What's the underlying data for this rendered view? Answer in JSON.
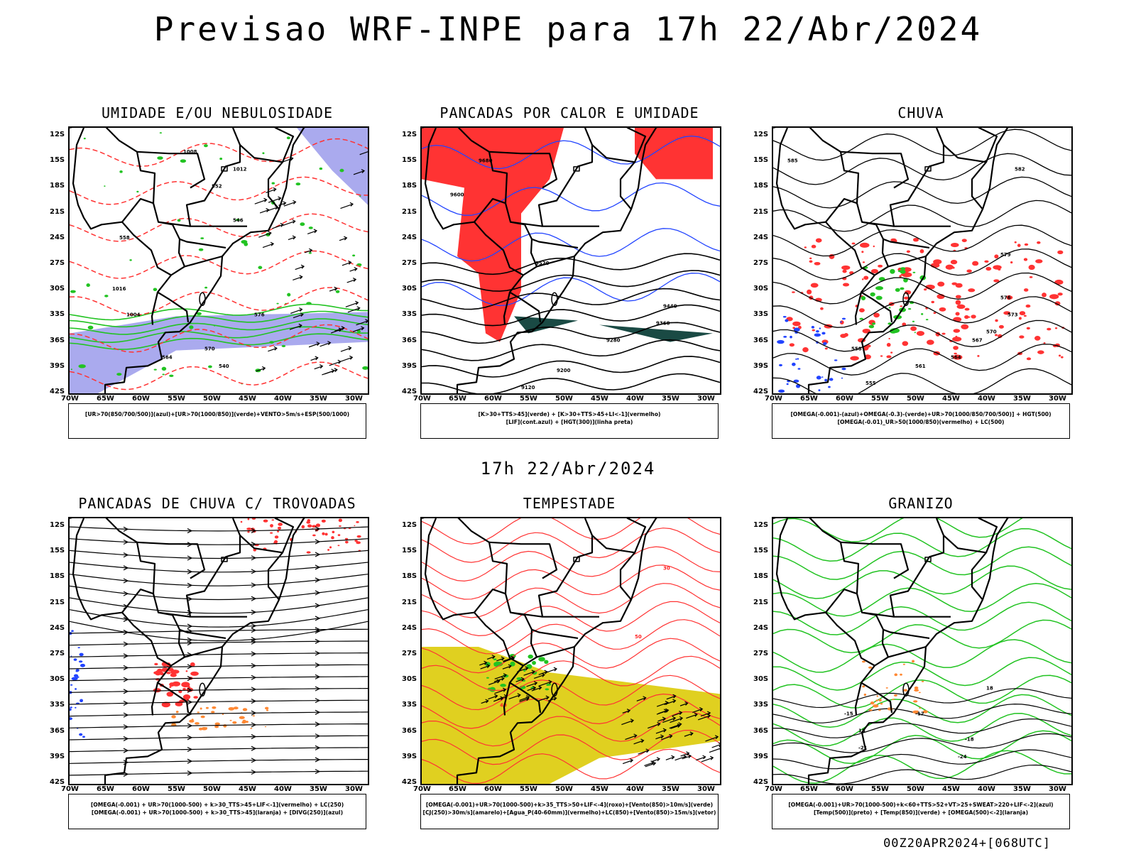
{
  "title": "Previsao WRF-INPE  para 17h 22/Abr/2024",
  "mid_date": "17h 22/Abr/2024",
  "footer": "00Z20APR2024+[068UTC]",
  "lat_labels": [
    "12S",
    "15S",
    "18S",
    "21S",
    "24S",
    "27S",
    "30S",
    "33S",
    "36S",
    "39S",
    "42S"
  ],
  "lon_labels": [
    "70W",
    "65W",
    "60W",
    "55W",
    "50W",
    "45W",
    "40W",
    "35W",
    "30W"
  ],
  "colors": {
    "green": "#22c322",
    "red": "#ff3333",
    "blue": "#2244ff",
    "lavender": "#aaaaee",
    "orange": "#ff8833",
    "dark_teal": "#1a4a44",
    "yellow": "#e0d020"
  },
  "panels": [
    {
      "id": "umidade",
      "title": "UMIDADE E/OU NEBULOSIDADE",
      "legend": [
        "[UR>70(850/700/500)](azul)+[UR>70(1000/850)](verde)+VENTO>5m/s+ESP(500/1000)"
      ],
      "contour_labels": [
        "1008",
        "1012",
        "1016",
        "1004",
        "576",
        "570",
        "564",
        "558",
        "552",
        "546",
        "540"
      ]
    },
    {
      "id": "pancadas-calor",
      "title": "PANCADAS POR CALOR E UMIDADE",
      "legend": [
        "[K>30+TTS>45](verde) + [K>30+TTS>45+LI<-1](vermelho)",
        "[LIF](cont.azul) + [HGT(300)](linha preta)"
      ],
      "contour_labels": [
        "9680",
        "9600",
        "9520",
        "9440",
        "9360",
        "9280",
        "9200",
        "9120"
      ]
    },
    {
      "id": "chuva",
      "title": "CHUVA",
      "legend": [
        "[OMEGA(-0.001)-(azul)+OMEGA(-0.3)-(verde)+UR>70(1000/850/700/500)] + HGT(500)",
        "[OMEGA(-0.01)_UR>50(1000/850)(vermelho) + LC(500)"
      ],
      "contour_labels": [
        "585",
        "582",
        "579",
        "576",
        "573",
        "570",
        "567",
        "564",
        "561",
        "558",
        "555"
      ]
    },
    {
      "id": "pancadas-trovoadas",
      "title": "PANCADAS DE CHUVA C/ TROVOADAS",
      "legend": [
        "[OMEGA(-0.001) + UR>70(1000-500) + k>30_TTS>45+LIF<-1](vermelho) + LC(250)",
        "[OMEGA(-0.001) + UR>70(1000-500) + k>30_TTS>45](laranja) + [DIVG(250)](azul)"
      ],
      "contour_labels": []
    },
    {
      "id": "tempestade",
      "title": "TEMPESTADE",
      "legend": [
        "[OMEGA(-0.001)+UR>70(1000-500)+k>35_TTS>50+LIF<-4](roxo)+[Vento(850)>10m/s](verde)",
        "[CJ(250)>30m/s](amarelo)+[Agua_P(40-60mm)](vermelho)+LC(850)+[Vento(850)>15m/s](vetor)"
      ],
      "contour_labels": [
        "40",
        "30",
        "50"
      ]
    },
    {
      "id": "granizo",
      "title": "GRANIZO",
      "legend": [
        "[OMEGA(-0.001)+UR>70(1000-500)+k<60+TTS>52+VT>25+SWEAT>220+LIF<-2](azul)",
        "[Temp(500)](preto) + [Temp(850)](verde) + [OMEGA(500)<-2](laranja)"
      ],
      "contour_labels": [
        "-15",
        "-12",
        "-18",
        "-21",
        "-24",
        "15",
        "18"
      ]
    }
  ]
}
